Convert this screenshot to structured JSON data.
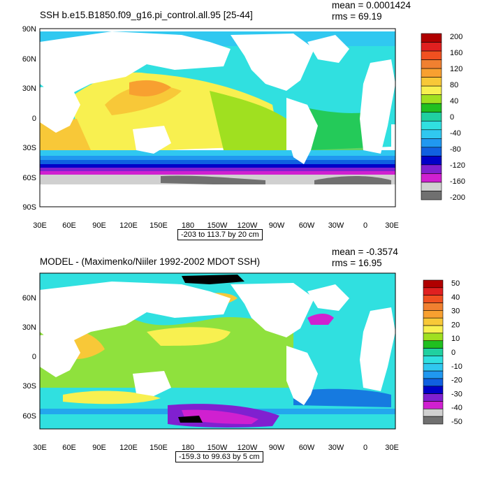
{
  "panels": [
    {
      "title": "SSH b.e15.B1850.f09_g16.pi_control.all.95 [25-44]",
      "mean": "mean = 0.0001424",
      "rms": "rms = 69.19",
      "contour_note": "-203 to 113.7 by 20 cm",
      "lat_labels": [
        "90N",
        "60N",
        "30N",
        "0",
        "30S",
        "60S",
        "90S"
      ],
      "lon_labels": [
        "30E",
        "60E",
        "90E",
        "120E",
        "150E",
        "180",
        "150W",
        "120W",
        "90W",
        "60W",
        "30W",
        "0",
        "30E"
      ],
      "colorbar": {
        "labels": [
          "200",
          "160",
          "120",
          "80",
          "40",
          "0",
          "-40",
          "-80",
          "-120",
          "-160",
          "-200"
        ],
        "colors": [
          "#b00000",
          "#e02020",
          "#f05020",
          "#f08030",
          "#f8a030",
          "#f8c838",
          "#f8f050",
          "#a0e020",
          "#20c020",
          "#20d0a0",
          "#30e0e0",
          "#30c8f0",
          "#2098f0",
          "#1060e0",
          "#0000c8",
          "#8020d0",
          "#d020d0",
          "#d0d0d0",
          "#707070"
        ]
      }
    },
    {
      "title": "MODEL - (Maximenko/Niiler 1992-2002 MDOT SSH)",
      "mean": "mean = -0.3574",
      "rms": "rms = 16.95",
      "contour_note": "-159.3 to 99.63 by 5 cm",
      "lat_labels": [
        "60N",
        "30N",
        "0",
        "30S",
        "60S"
      ],
      "lon_labels": [
        "30E",
        "60E",
        "90E",
        "120E",
        "150E",
        "180",
        "150W",
        "120W",
        "90W",
        "60W",
        "30W",
        "0",
        "30E"
      ],
      "colorbar": {
        "labels": [
          "50",
          "40",
          "30",
          "20",
          "10",
          "0",
          "-10",
          "-20",
          "-30",
          "-40",
          "-50"
        ],
        "colors": [
          "#b00000",
          "#e02020",
          "#f05020",
          "#f08030",
          "#f8a030",
          "#f8c838",
          "#f8f050",
          "#a0e020",
          "#20c020",
          "#20d0a0",
          "#30e0e0",
          "#30c8f0",
          "#2098f0",
          "#1060e0",
          "#0000c8",
          "#8020d0",
          "#d020d0",
          "#d0d0d0",
          "#707070"
        ]
      }
    }
  ]
}
